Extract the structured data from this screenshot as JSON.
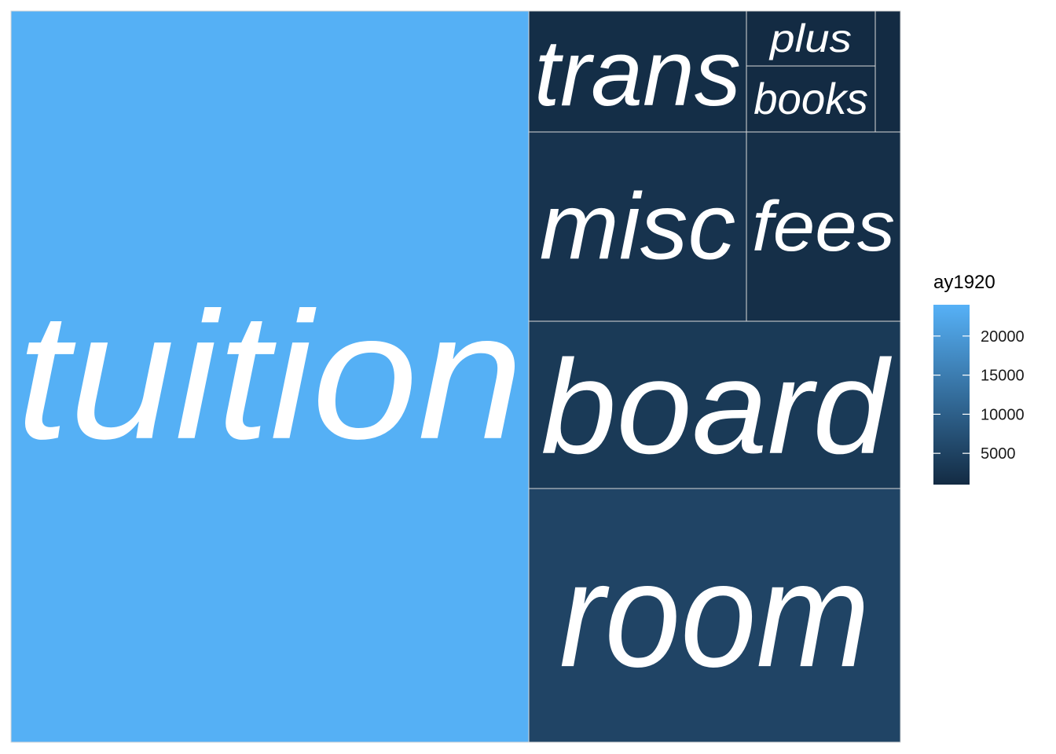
{
  "chart_data": {
    "type": "treemap",
    "legend": {
      "title": "ay1920",
      "ticks": [
        5000,
        10000,
        15000,
        20000
      ],
      "tick_labels": [
        "5000",
        "10000",
        "15000",
        "20000"
      ],
      "range": [
        1000,
        24000
      ],
      "low_color": "#132B43",
      "high_color": "#56B1F7",
      "placement": "right"
    },
    "tiles": [
      {
        "label": "tuition",
        "value": 23800
      },
      {
        "label": "room",
        "value": 5350
      },
      {
        "label": "board",
        "value": 3550
      },
      {
        "label": "misc",
        "value": 2400
      },
      {
        "label": "fees",
        "value": 1700
      },
      {
        "label": "trans",
        "value": 1500
      },
      {
        "label": "plus",
        "value": 800
      },
      {
        "label": "books",
        "value": 950
      },
      {
        "label": "",
        "value": 300
      }
    ]
  }
}
